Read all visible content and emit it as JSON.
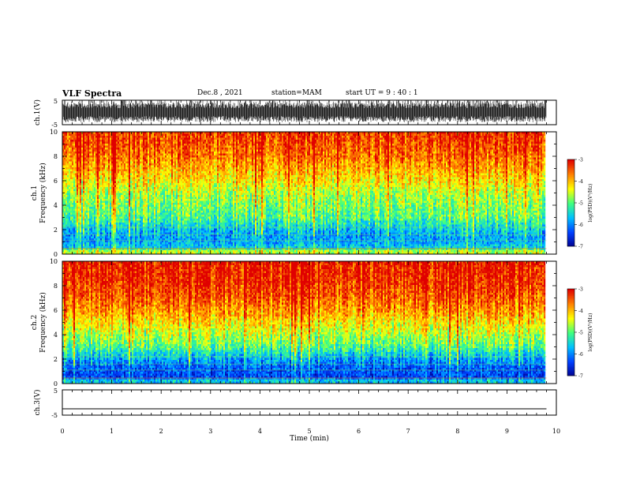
{
  "header": {
    "title": "VLF Spectra",
    "date": "Dec.8 , 2021",
    "station": "station=MAM",
    "start": "start UT = 9 : 40 : 1"
  },
  "chart_data": [
    {
      "type": "line",
      "panel": "waveform-ch1",
      "ylabel": "ch.1(V)",
      "ylim": [
        -5,
        5
      ],
      "y_ticks": [
        "5",
        "-5"
      ],
      "description_values": {
        "baseline_V": 0,
        "approx_amplitude_V": 5
      }
    },
    {
      "type": "heatmap",
      "panel": "spectrogram-ch1",
      "ylabel": "ch.1 Frequency (kHz)",
      "xlim": [
        0,
        10
      ],
      "ylim": [
        0,
        10
      ],
      "y_ticks": [
        "0",
        "2",
        "4",
        "6",
        "8",
        "10"
      ],
      "data_extent_min": 9.8,
      "z_profile_by_freq_kHz": {
        "freq": [
          0.3,
          0.5,
          1.0,
          1.5,
          2.0,
          2.5,
          3.0,
          4.0,
          5.0,
          6.0,
          7.0,
          8.0,
          9.0,
          10.0
        ],
        "log_psd": [
          -4.6,
          -5.5,
          -5.8,
          -5.8,
          -5.6,
          -5.3,
          -5.0,
          -4.8,
          -4.6,
          -4.2,
          -3.9,
          -3.6,
          -3.4,
          -3.3
        ]
      },
      "colorbar": {
        "label": "log(PSD)(V²/Hz)",
        "range": [
          -7,
          -3
        ],
        "ticks": [
          "-3",
          "-4",
          "-5",
          "-6",
          "-7"
        ]
      }
    },
    {
      "type": "heatmap",
      "panel": "spectrogram-ch2",
      "ylabel": "ch.2 Frequency (kHz)",
      "xlim": [
        0,
        10
      ],
      "ylim": [
        0,
        10
      ],
      "y_ticks": [
        "0",
        "2",
        "4",
        "6",
        "8",
        "10"
      ],
      "data_extent_min": 9.8,
      "z_profile_by_freq_kHz": {
        "freq": [
          0.3,
          0.5,
          1.0,
          1.5,
          2.0,
          2.5,
          3.0,
          4.0,
          5.0,
          6.0,
          7.0,
          8.0,
          9.0,
          10.0
        ],
        "log_psd": [
          -5.6,
          -6.3,
          -6.3,
          -6.1,
          -5.8,
          -5.4,
          -5.0,
          -4.6,
          -4.2,
          -3.8,
          -3.5,
          -3.3,
          -3.2,
          -3.1
        ]
      },
      "colorbar": {
        "label": "log(PSD)(V²/Hz)",
        "range": [
          -7,
          -3
        ],
        "ticks": [
          "-3",
          "-4",
          "-5",
          "-6",
          "-7"
        ]
      }
    },
    {
      "type": "line",
      "panel": "waveform-ch3",
      "ylabel": "ch.3(V)",
      "ylim": [
        -5,
        5
      ],
      "y_ticks": [
        "5",
        "-5"
      ],
      "series": [
        {
          "x": [
            0,
            9.8
          ],
          "y": [
            -2.5,
            -2.5
          ]
        }
      ]
    }
  ],
  "x_axis": {
    "label": "Time (min)",
    "ticks": [
      "0",
      "1",
      "2",
      "3",
      "4",
      "5",
      "6",
      "7",
      "8",
      "9",
      "10"
    ],
    "range": [
      0,
      10
    ]
  },
  "colors": {
    "colormap": [
      "#00008f",
      "#0040ff",
      "#00c0ff",
      "#40ff80",
      "#ffff00",
      "#ff8000",
      "#e00000"
    ]
  }
}
